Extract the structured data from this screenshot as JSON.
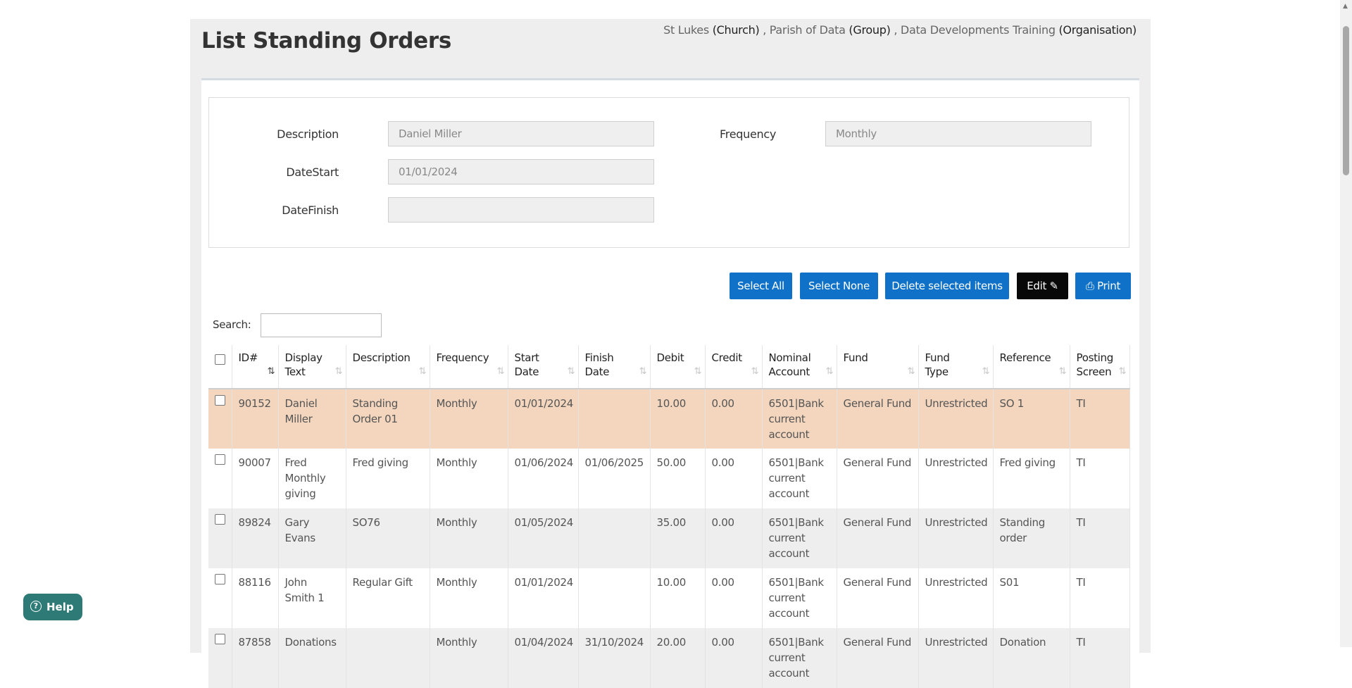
{
  "page": {
    "title": "List Standing Orders",
    "context": {
      "church": "St Lukes",
      "church_type": "(Church)",
      "group": "Parish of Data",
      "group_type": "(Group)",
      "organisation": "Data Developments Training",
      "organisation_type": "(Organisation)",
      "separator": ","
    }
  },
  "filter": {
    "description_label": "Description",
    "description_value": "Daniel Miller",
    "datestart_label": "DateStart",
    "datestart_value": "01/01/2024",
    "datefinish_label": "DateFinish",
    "datefinish_value": "",
    "frequency_label": "Frequency",
    "frequency_value": "Monthly"
  },
  "toolbar": {
    "select_all": "Select All",
    "select_none": "Select None",
    "delete_selected": "Delete selected items",
    "edit": "Edit",
    "print": "Print"
  },
  "search": {
    "label": "Search:",
    "value": ""
  },
  "table": {
    "columns": [
      "ID#",
      "Display Text",
      "Description",
      "Frequency",
      "Start Date",
      "Finish Date",
      "Debit",
      "Credit",
      "Nominal Account",
      "Fund",
      "Fund Type",
      "Reference",
      "Posting Screen"
    ],
    "rows": [
      {
        "id": "90152",
        "display": "Daniel Miller",
        "description": "Standing Order 01",
        "frequency": "Monthly",
        "start": "01/01/2024",
        "finish": "",
        "debit": "10.00",
        "credit": "0.00",
        "nominal": "6501|Bank current account",
        "fund": "General Fund",
        "fund_type": "Unrestricted",
        "reference": "SO 1",
        "posting": "TI"
      },
      {
        "id": "90007",
        "display": "Fred Monthly giving",
        "description": "Fred giving",
        "frequency": "Monthly",
        "start": "01/06/2024",
        "finish": "01/06/2025",
        "debit": "50.00",
        "credit": "0.00",
        "nominal": "6501|Bank current account",
        "fund": "General Fund",
        "fund_type": "Unrestricted",
        "reference": "Fred giving",
        "posting": "TI"
      },
      {
        "id": "89824",
        "display": "Gary Evans",
        "description": "SO76",
        "frequency": "Monthly",
        "start": "01/05/2024",
        "finish": "",
        "debit": "35.00",
        "credit": "0.00",
        "nominal": "6501|Bank current account",
        "fund": "General Fund",
        "fund_type": "Unrestricted",
        "reference": "Standing order",
        "posting": "TI"
      },
      {
        "id": "88116",
        "display": "John Smith 1",
        "description": "Regular Gift",
        "frequency": "Monthly",
        "start": "01/01/2024",
        "finish": "",
        "debit": "10.00",
        "credit": "0.00",
        "nominal": "6501|Bank current account",
        "fund": "General Fund",
        "fund_type": "Unrestricted",
        "reference": "S01",
        "posting": "TI"
      },
      {
        "id": "87858",
        "display": "Donations",
        "description": "",
        "frequency": "Monthly",
        "start": "01/04/2024",
        "finish": "31/10/2024",
        "debit": "20.00",
        "credit": "0.00",
        "nominal": "6501|Bank current account",
        "fund": "General Fund",
        "fund_type": "Unrestricted",
        "reference": "Donation",
        "posting": "TI"
      }
    ]
  },
  "help": {
    "label": "Help",
    "icon_glyph": "?"
  },
  "icons": {
    "sort": "⇅",
    "edit": "✎",
    "print": "⎙",
    "scroll_up": "▲"
  },
  "colors": {
    "primary": "#0f72c8",
    "selected_row": "#f3d6bd",
    "help": "#2e7a76"
  }
}
